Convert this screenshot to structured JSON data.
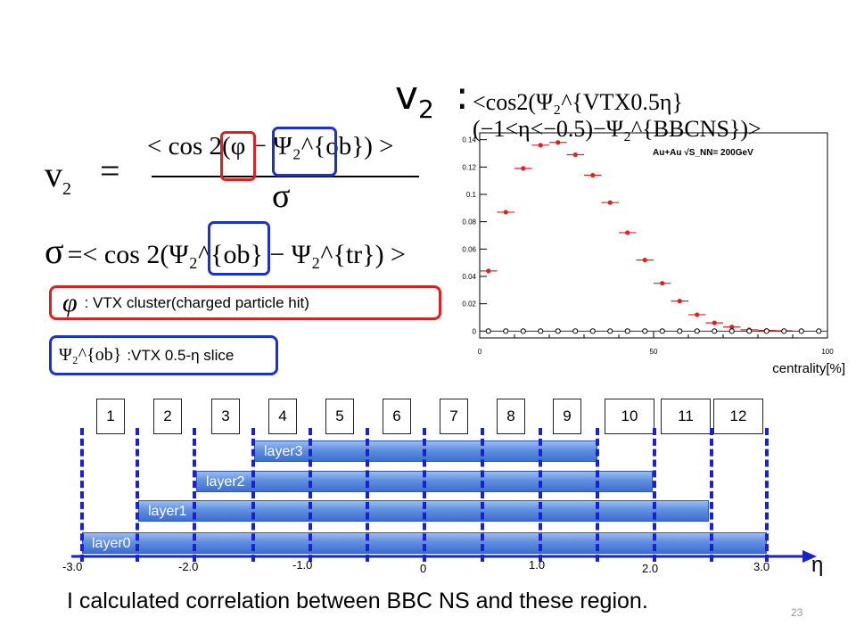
{
  "title": {
    "v": "v",
    "sub": "2",
    "colon": ":"
  },
  "top_formula": "<cos2(Ψ₂^{VTX0.5η}(−1<η<−0.5)−Ψ₂^{BBCNS})>",
  "eq1": {
    "lhs": "v",
    "lhs_sub": "2",
    "equals": "=",
    "numerator": "< cos 2(φ − Ψ₂^{ob}) >",
    "denominator": "σ"
  },
  "eq2": {
    "lhs": "σ",
    "rhs": "=< cos 2(Ψ₂^{ob} − Ψ₂^{tr}) >"
  },
  "legend": {
    "phi_symbol": "φ",
    "phi_text": ": VTX cluster(charged particle hit)",
    "psi_symbol": "Ψ₂^{ob}",
    "psi_text": ":VTX 0.5-η slice"
  },
  "chart_data": {
    "type": "scatter",
    "annotation": "Au+Au √S_NN= 200GeV",
    "xlabel": "centrality[%]",
    "xlim": [
      0,
      100
    ],
    "ylim": [
      -0.005,
      0.145
    ],
    "x_ticks": [
      "0",
      "50",
      "100"
    ],
    "y_ticks": [
      "0",
      "0.02",
      "0.04",
      "0.06",
      "0.08",
      "0.1",
      "0.12",
      "0.14"
    ],
    "series": [
      {
        "marker": "filled-red",
        "x": [
          2.5,
          7.5,
          12.5,
          17.5,
          22.5,
          27.5,
          32.5,
          37.5,
          42.5,
          47.5,
          52.5,
          57.5,
          62.5,
          67.5,
          72.5,
          77.5,
          82.5,
          87.5
        ],
        "y": [
          0.044,
          0.087,
          0.119,
          0.136,
          0.138,
          0.129,
          0.114,
          0.094,
          0.072,
          0.052,
          0.035,
          0.022,
          0.012,
          0.006,
          0.003,
          0.001,
          0.0005,
          0.0002
        ]
      },
      {
        "marker": "open-black",
        "x": [
          2.5,
          7.5,
          12.5,
          17.5,
          22.5,
          27.5,
          32.5,
          37.5,
          42.5,
          47.5,
          52.5,
          57.5,
          62.5,
          67.5,
          72.5,
          77.5,
          82.5,
          87.5,
          92.5,
          97.5
        ],
        "y": [
          0,
          0,
          0,
          0,
          0,
          0,
          0,
          0,
          0,
          0,
          0,
          0,
          0,
          0,
          0,
          0,
          0,
          0,
          0,
          0
        ]
      }
    ]
  },
  "eta_boxes": [
    "1",
    "2",
    "3",
    "4",
    "5",
    "6",
    "7",
    "8",
    "9",
    "10",
    "11",
    "12"
  ],
  "layers": [
    "layer3",
    "layer2",
    "layer1",
    "layer0"
  ],
  "axis_ticks": [
    "-3.0",
    "-2.0",
    "-1.0",
    "0",
    "1.0",
    "2.0",
    "3.0"
  ],
  "axis_label": "η",
  "bottom_text": "I calculated correlation between BBC NS and these region.",
  "page_number": "23",
  "colors": {
    "red": "#e02020",
    "blue": "#1a2fd8",
    "bar": "#4f7fd8"
  }
}
